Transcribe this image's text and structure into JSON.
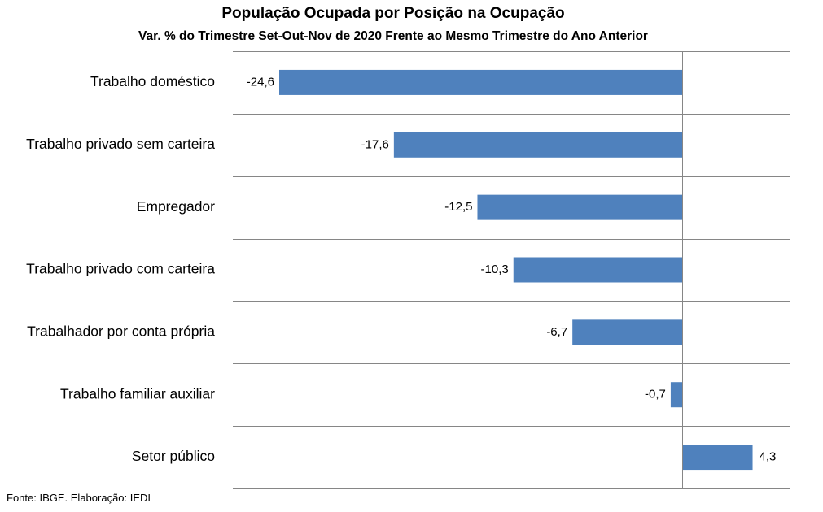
{
  "chart_data": {
    "type": "bar",
    "orientation": "horizontal",
    "title": "População Ocupada por Posição na Ocupação",
    "subtitle": "Var. % do Trimestre Set-Out-Nov de 2020 Frente ao Mesmo Trimestre do Ano Anterior",
    "categories": [
      "Trabalho doméstico",
      "Trabalho privado sem carteira",
      "Empregador",
      "Trabalho privado com carteira",
      "Trabalhador por conta própria",
      "Trabalho familiar auxiliar",
      "Setor público"
    ],
    "values": [
      -24.6,
      -17.6,
      -12.5,
      -10.3,
      -6.7,
      -0.7,
      4.3
    ],
    "value_labels": [
      "-24,6",
      "-17,6",
      "-12,5",
      "-10,3",
      "-6,7",
      "-0,7",
      "4,3"
    ],
    "xlim": [
      -24.6,
      6.5
    ],
    "grid": true,
    "legend": "none",
    "source": "Fonte: IBGE. Elaboração: IEDI",
    "colors": {
      "bar": "#4f81bd",
      "grid": "#868686",
      "axis": "#868686"
    }
  }
}
